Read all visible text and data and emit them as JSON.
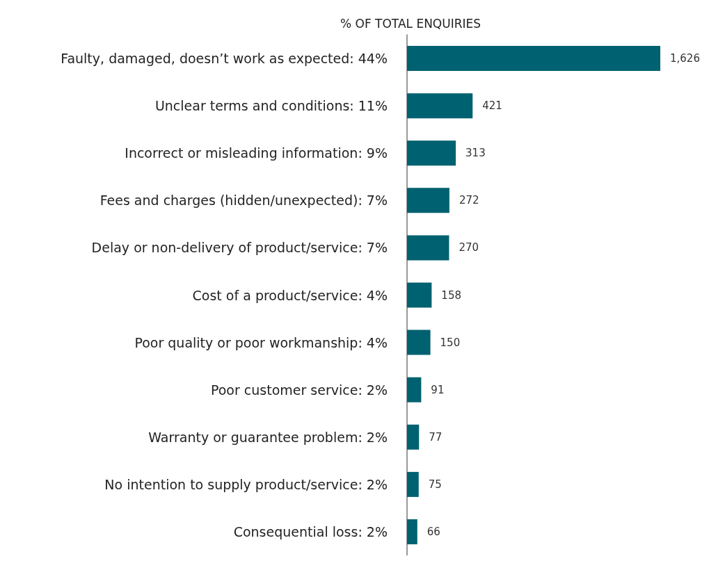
{
  "chart_data": {
    "type": "bar",
    "orientation": "horizontal",
    "title": "% OF TOTAL ENQUIRIES",
    "categories": [
      "Faulty, damaged, doesn’t work as expected: 44%",
      "Unclear terms and conditions: 11%",
      "Incorrect or misleading information: 9%",
      "Fees and charges (hidden/unexpected): 7%",
      "Delay or non-delivery of product/service: 7%",
      "Cost of a product/service: 4%",
      "Poor quality or poor workmanship: 4%",
      "Poor customer service: 2%",
      "Warranty or guarantee problem: 2%",
      "No intention to supply product/service: 2%",
      "Consequential loss: 2%"
    ],
    "values": [
      1626,
      421,
      313,
      272,
      270,
      158,
      150,
      91,
      77,
      75,
      66
    ],
    "value_labels": [
      "1,626",
      "421",
      "313",
      "272",
      "270",
      "158",
      "150",
      "91",
      "77",
      "75",
      "66"
    ],
    "color": "#006170",
    "grid": false
  }
}
